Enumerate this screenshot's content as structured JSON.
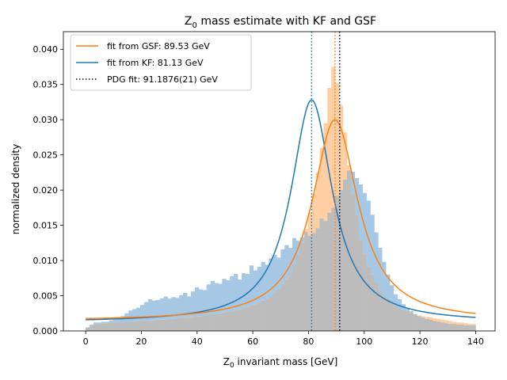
{
  "chart_data": {
    "type": "histogram+line",
    "title_main": "Z",
    "title_sub": "0",
    "title_rest": " mass estimate with KF and GSF",
    "xlabel_main": "Z",
    "xlabel_sub": "0",
    "xlabel_rest": " invariant mass [GeV]",
    "ylabel": "normalized density",
    "xlim": [
      -8,
      147
    ],
    "ylim": [
      0,
      0.0425
    ],
    "xticks": [
      0,
      20,
      40,
      60,
      80,
      100,
      120,
      140
    ],
    "yticks": [
      0.0,
      0.005,
      0.01,
      0.015,
      0.02,
      0.025,
      0.03,
      0.035,
      0.04
    ],
    "ytick_labels": [
      "0.000",
      "0.005",
      "0.010",
      "0.015",
      "0.020",
      "0.025",
      "0.030",
      "0.035",
      "0.040"
    ],
    "legend_position": "top-left",
    "legend": [
      {
        "label": "fit from GSF: 89.53 GeV",
        "color": "#ff7f0e",
        "style": "solid"
      },
      {
        "label": "fit from KF: 81.13 GeV",
        "color": "#1f77b4",
        "style": "solid"
      },
      {
        "label": "PDG fit: 91.1876(21) GeV",
        "color": "#000000",
        "style": "dotted"
      }
    ],
    "vlines": [
      {
        "x": 81.13,
        "color": "#1f77b4"
      },
      {
        "x": 89.53,
        "color": "#ff7f0e"
      },
      {
        "x": 91.1876,
        "color": "#000000"
      }
    ],
    "curves": [
      {
        "peak_x": 81.13,
        "peak_y": 0.0328,
        "gamma": 9.0,
        "baseline": 0.0012,
        "x_range": [
          0,
          140
        ],
        "color": "#1f77b4"
      },
      {
        "peak_x": 89.53,
        "peak_y": 0.03,
        "gamma": 10.0,
        "baseline": 0.0014,
        "x_range": [
          0,
          140
        ],
        "color": "#ff7f0e"
      }
    ],
    "histograms": {
      "bin_width": 1.4,
      "x_start": 0,
      "kf_color": "#a6c8e4",
      "gsf_color": "#ffcfa3",
      "overlap_color": "#bcbcbc",
      "kf_density": [
        0.0005,
        0.0009,
        0.0012,
        0.0012,
        0.0013,
        0.0013,
        0.0015,
        0.0016,
        0.0019,
        0.0021,
        0.0025,
        0.0029,
        0.0031,
        0.0033,
        0.0037,
        0.0041,
        0.0045,
        0.0043,
        0.0044,
        0.0046,
        0.0049,
        0.0046,
        0.0048,
        0.0047,
        0.0051,
        0.0054,
        0.0049,
        0.0056,
        0.0062,
        0.0059,
        0.0058,
        0.0066,
        0.0071,
        0.0068,
        0.0067,
        0.0074,
        0.0072,
        0.0078,
        0.0081,
        0.0073,
        0.0082,
        0.0081,
        0.0093,
        0.0086,
        0.0091,
        0.0098,
        0.0094,
        0.0103,
        0.0108,
        0.0104,
        0.0116,
        0.0122,
        0.0118,
        0.0132,
        0.0128,
        0.0133,
        0.0141,
        0.0135,
        0.0139,
        0.0146,
        0.016,
        0.0156,
        0.0168,
        0.0175,
        0.0192,
        0.02,
        0.0215,
        0.0228,
        0.0226,
        0.0217,
        0.0208,
        0.0196,
        0.0185,
        0.0165,
        0.014,
        0.0118,
        0.0098,
        0.008,
        0.0065,
        0.0052,
        0.0045,
        0.0038,
        0.0032,
        0.0028,
        0.0024,
        0.0021,
        0.0019,
        0.0017,
        0.0016,
        0.0014,
        0.0013,
        0.0012,
        0.0011,
        0.001,
        0.001,
        0.0009,
        0.0009,
        0.0008,
        0.0008,
        0.0008
      ],
      "gsf_density": [
        0.0005,
        0.0008,
        0.0009,
        0.001,
        0.0011,
        0.0011,
        0.0012,
        0.0012,
        0.0013,
        0.0012,
        0.0013,
        0.0013,
        0.0013,
        0.0014,
        0.0014,
        0.0015,
        0.0014,
        0.0015,
        0.0016,
        0.0016,
        0.0016,
        0.0017,
        0.0017,
        0.0018,
        0.0018,
        0.0019,
        0.0019,
        0.002,
        0.0021,
        0.0021,
        0.0022,
        0.0022,
        0.0023,
        0.0024,
        0.0025,
        0.0026,
        0.0027,
        0.0028,
        0.003,
        0.0031,
        0.0032,
        0.0034,
        0.0036,
        0.0038,
        0.004,
        0.0043,
        0.0046,
        0.005,
        0.0055,
        0.006,
        0.0067,
        0.0074,
        0.0082,
        0.0094,
        0.0108,
        0.0125,
        0.0145,
        0.0168,
        0.0195,
        0.0225,
        0.026,
        0.0295,
        0.0345,
        0.0375,
        0.0352,
        0.032,
        0.0282,
        0.0235,
        0.0195,
        0.0165,
        0.013,
        0.011,
        0.0092,
        0.008,
        0.0068,
        0.0058,
        0.005,
        0.0045,
        0.004,
        0.0036,
        0.0032,
        0.003,
        0.0028,
        0.0026,
        0.0024,
        0.0022,
        0.0021,
        0.002,
        0.0019,
        0.0018,
        0.0017,
        0.0016,
        0.0015,
        0.0014,
        0.0013,
        0.0012,
        0.0012,
        0.0011,
        0.001,
        0.001
      ]
    }
  }
}
